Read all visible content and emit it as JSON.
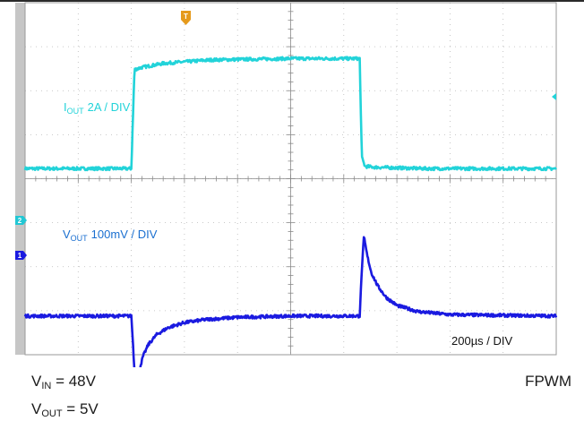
{
  "chart_data": {
    "type": "line",
    "time_scale": "200µs / DIV",
    "divisions": {
      "x": 10,
      "y": 8
    },
    "series": [
      {
        "name": "I",
        "name_sub": "OUT",
        "scale": "2A / DIV",
        "color": "#22d3d9",
        "marker": "",
        "x_div": [
          0,
          2.0,
          2.06,
          2.2,
          2.6,
          3.5,
          5.0,
          6.3,
          6.34,
          6.4,
          6.6,
          7.5,
          10
        ],
        "y_div": [
          -0.05,
          -0.05,
          2.2,
          2.25,
          2.34,
          2.42,
          2.45,
          2.45,
          0.2,
          0.0,
          -0.02,
          -0.05,
          -0.05
        ]
      },
      {
        "name": "V",
        "name_sub": "OUT",
        "scale": "100mV / DIV",
        "color": "#1a1ae0",
        "marker": "1",
        "x_div": [
          0,
          2.0,
          2.04,
          2.08,
          2.14,
          2.22,
          2.32,
          2.48,
          2.7,
          3.0,
          3.4,
          4.0,
          5.0,
          6.3,
          6.34,
          6.38,
          6.44,
          6.52,
          6.64,
          6.8,
          7.0,
          7.4,
          8.0,
          10
        ],
        "y_div": [
          0,
          0,
          -0.8,
          -1.78,
          -1.28,
          -0.92,
          -0.65,
          -0.42,
          -0.26,
          -0.15,
          -0.08,
          -0.03,
          0,
          0,
          1.05,
          1.8,
          1.38,
          0.98,
          0.68,
          0.42,
          0.24,
          0.1,
          0.03,
          0
        ]
      }
    ]
  },
  "channel_markers": {
    "trigger": "T",
    "ch2": "2",
    "ch1": "1"
  },
  "conditions": {
    "vin_main": "V",
    "vin_sub": "IN",
    "vin_value": " = 48V",
    "vout_main": "V",
    "vout_sub": "OUT",
    "vout_value": " = 5V",
    "mode": "FPWM"
  }
}
